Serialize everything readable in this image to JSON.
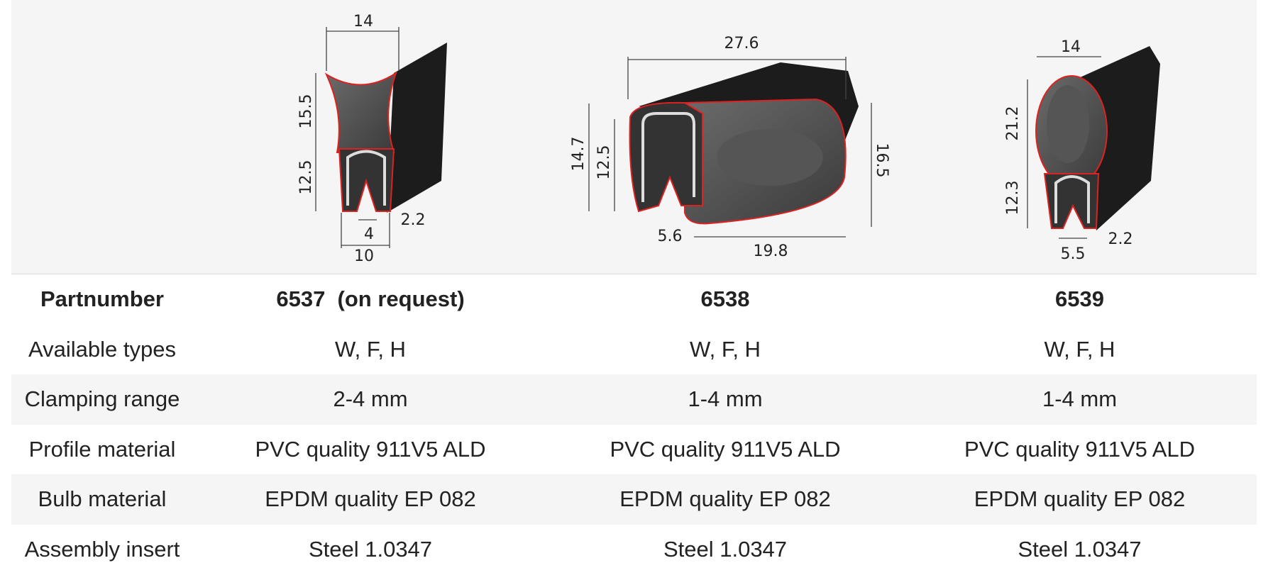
{
  "drawings": [
    {
      "dimensions": [
        "14",
        "15.5",
        "12.5",
        "4",
        "10",
        "2.2"
      ]
    },
    {
      "dimensions": [
        "27.6",
        "14.7",
        "12.5",
        "16.5",
        "5.6",
        "19.8"
      ]
    },
    {
      "dimensions": [
        "14",
        "21.2",
        "12.3",
        "2.2",
        "5.5"
      ]
    }
  ],
  "table": {
    "header": [
      "Partnumber",
      "6537  (on request)",
      "6538",
      "6539"
    ],
    "rows": [
      [
        "Available types",
        "W, F, H",
        "W, F, H",
        "W, F, H"
      ],
      [
        "Clamping range",
        "2-4 mm",
        "1-4 mm",
        "1-4 mm"
      ],
      [
        "Profile material",
        "PVC quality 911V5 ALD",
        "PVC quality 911V5 ALD",
        "PVC quality 911V5 ALD"
      ],
      [
        "Bulb material",
        "EPDM quality EP 082",
        "EPDM quality EP 082",
        "EPDM quality EP 082"
      ],
      [
        "Assembly insert",
        "Steel 1.0347",
        "Steel 1.0347",
        "Steel 1.0347"
      ]
    ]
  }
}
